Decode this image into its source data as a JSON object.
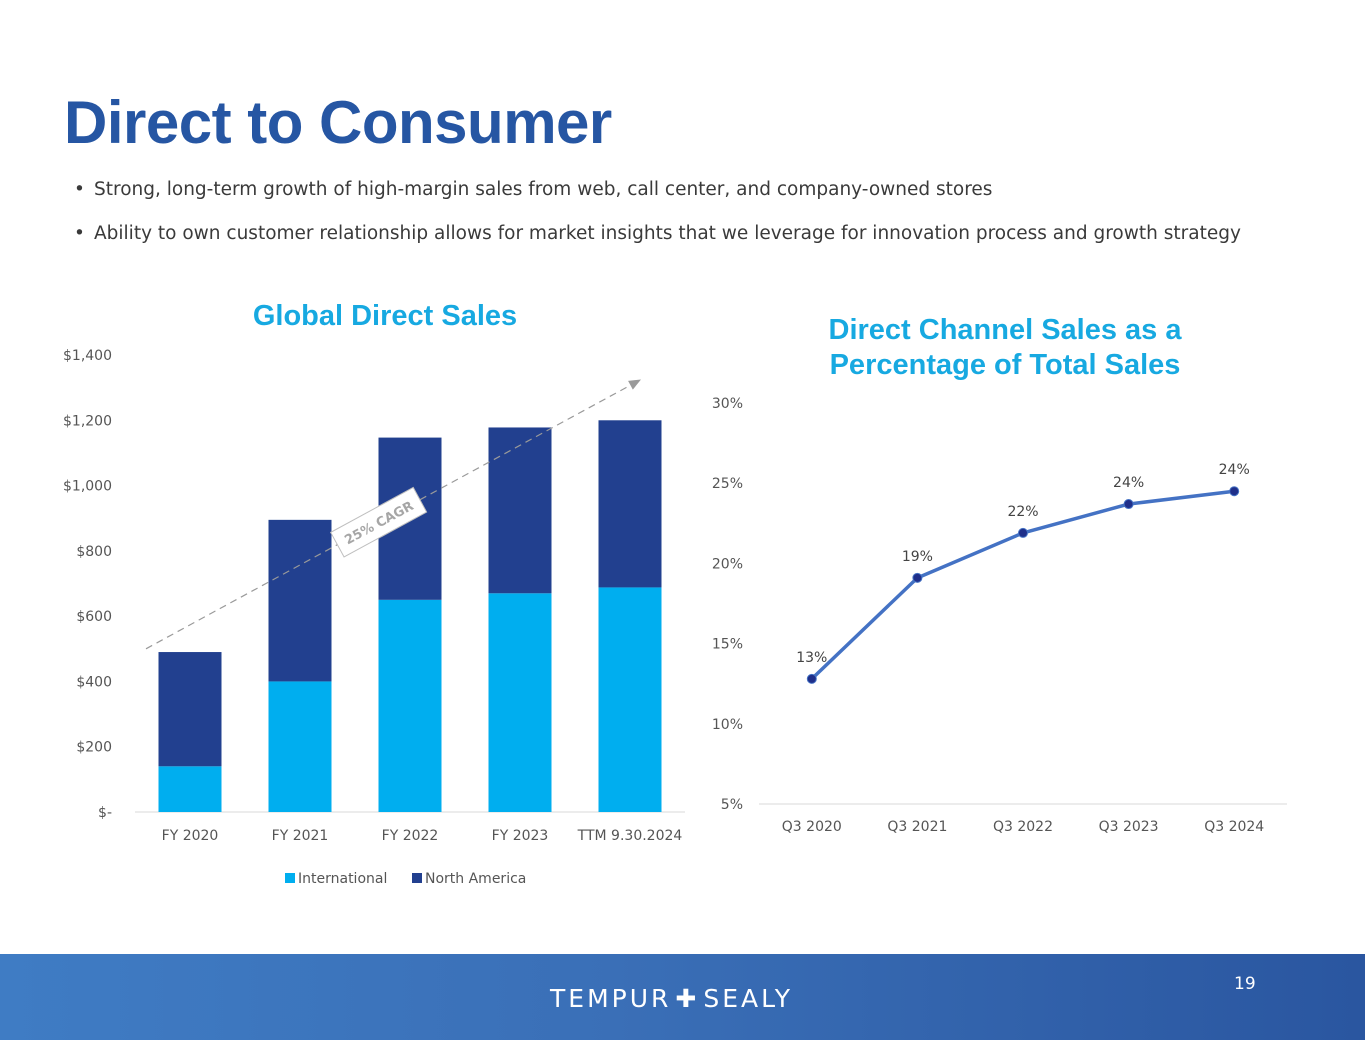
{
  "page": {
    "title": "Direct to Consumer",
    "bullets": [
      "Strong, long-term growth of high-margin sales from web, call center, and company-owned stores",
      "Ability to own customer relationship allows for market insights that we leverage for innovation process and growth strategy"
    ],
    "bullet_glyph": "•"
  },
  "colors": {
    "title": "#2656a3",
    "chart_title": "#17a9e1",
    "international": "#00aeef",
    "north_america": "#22408f",
    "line": "#4472c4",
    "marker": "#1f2f8a"
  },
  "chart_data": [
    {
      "type": "bar",
      "stacked": true,
      "title": "Global Direct Sales",
      "categories": [
        "FY 2020",
        "FY 2021",
        "FY 2022",
        "FY 2023",
        "TTM 9.30.2024"
      ],
      "series": [
        {
          "name": "International",
          "values": [
            140,
            400,
            650,
            670,
            688
          ]
        },
        {
          "name": "North America",
          "values": [
            350,
            495,
            497,
            508,
            512
          ]
        }
      ],
      "ylim": [
        0,
        1400
      ],
      "yticks": [
        0,
        200,
        400,
        600,
        800,
        1000,
        1200,
        1400
      ],
      "ytick_labels": [
        "$-",
        "$200",
        "$400",
        "$600",
        "$800",
        "$1,000",
        "$1,200",
        "$1,400"
      ],
      "legend": "bottom",
      "annotation": {
        "text": "25% CAGR",
        "trend_from": [
          -0.4,
          500
        ],
        "trend_to": [
          4.1,
          1325
        ]
      }
    },
    {
      "type": "line",
      "title": "Direct Channel Sales as a Percentage of Total Sales",
      "categories": [
        "Q3 2020",
        "Q3 2021",
        "Q3 2022",
        "Q3 2023",
        "Q3 2024"
      ],
      "values": [
        12.8,
        19.1,
        21.9,
        23.7,
        24.5
      ],
      "data_labels": [
        "13%",
        "19%",
        "22%",
        "24%",
        "24%"
      ],
      "ylim": [
        5,
        30
      ],
      "yticks": [
        5,
        10,
        15,
        20,
        25,
        30
      ],
      "ytick_labels": [
        "5%",
        "10%",
        "15%",
        "20%",
        "25%",
        "30%"
      ]
    }
  ],
  "footer": {
    "logo_left": "TEMPUR",
    "logo_plus": "✚",
    "logo_right": "SEALY",
    "page_number": "19"
  }
}
